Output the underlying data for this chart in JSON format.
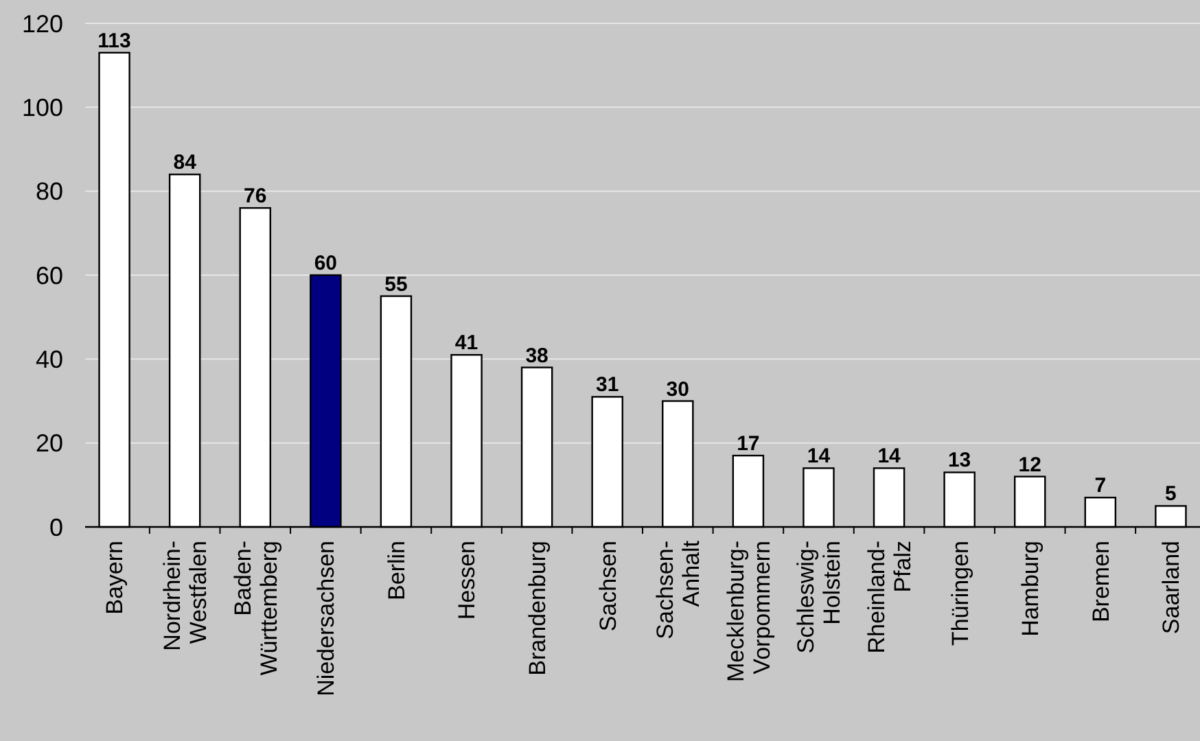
{
  "chart_data": {
    "type": "bar",
    "categories": [
      "Bayern",
      "Nordrhein-Westfalen",
      "Baden-Württemberg",
      "Niedersachsen",
      "Berlin",
      "Hessen",
      "Brandenburg",
      "Sachsen",
      "Sachsen-Anhalt",
      "Mecklenburg-Vorpommern",
      "Schleswig-Holstein",
      "Rheinland-Pfalz",
      "Thüringen",
      "Hamburg",
      "Bremen",
      "Saarland"
    ],
    "values": [
      113,
      84,
      76,
      60,
      55,
      41,
      38,
      31,
      30,
      17,
      14,
      14,
      13,
      12,
      7,
      5
    ],
    "colors": [
      "#ffffff",
      "#ffffff",
      "#ffffff",
      "#000080",
      "#ffffff",
      "#ffffff",
      "#ffffff",
      "#ffffff",
      "#ffffff",
      "#ffffff",
      "#ffffff",
      "#ffffff",
      "#ffffff",
      "#ffffff",
      "#ffffff",
      "#ffffff"
    ],
    "ylim": [
      0,
      120
    ],
    "yticks": [
      0,
      20,
      40,
      60,
      80,
      100,
      120
    ],
    "grid": "y",
    "data_labels": true
  }
}
